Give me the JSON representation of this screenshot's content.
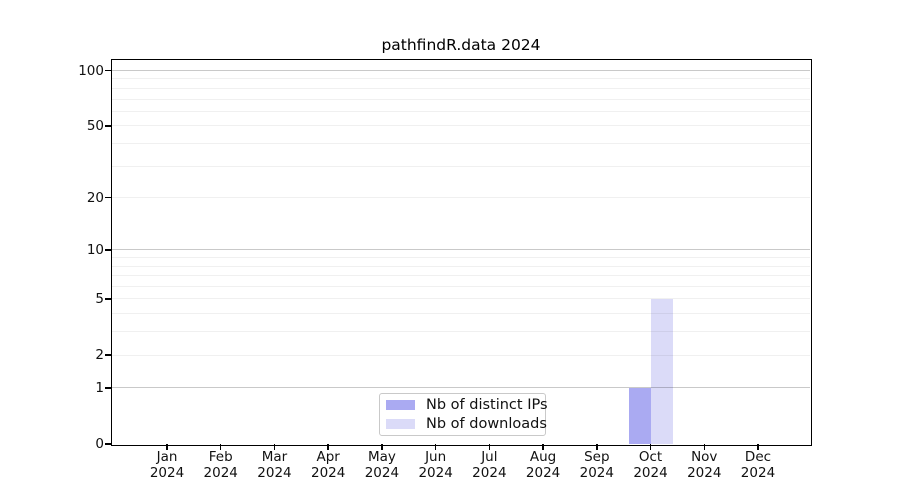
{
  "title": "pathfindR.data 2024",
  "chart_data": {
    "type": "bar",
    "title": "pathfindR.data 2024",
    "categories": [
      "Jan 2024",
      "Feb 2024",
      "Mar 2024",
      "Apr 2024",
      "May 2024",
      "Jun 2024",
      "Jul 2024",
      "Aug 2024",
      "Sep 2024",
      "Oct 2024",
      "Nov 2024",
      "Dec 2024"
    ],
    "months": [
      "Jan",
      "Feb",
      "Mar",
      "Apr",
      "May",
      "Jun",
      "Jul",
      "Aug",
      "Sep",
      "Oct",
      "Nov",
      "Dec"
    ],
    "year": "2024",
    "series": [
      {
        "name": "Nb of distinct IPs",
        "color": "#aaaaf2",
        "values": [
          0,
          0,
          0,
          0,
          0,
          0,
          0,
          0,
          0,
          1,
          0,
          0
        ]
      },
      {
        "name": "Nb of downloads",
        "color": "#dbdbf8",
        "values": [
          0,
          0,
          0,
          0,
          0,
          0,
          0,
          0,
          0,
          5,
          0,
          0
        ]
      }
    ],
    "xlabel": "",
    "ylabel": "",
    "yscale": "log1p",
    "ylim": [
      0,
      115
    ],
    "y_ticks": [
      100,
      50,
      20,
      10,
      5,
      2,
      1,
      0
    ],
    "grid": true,
    "gridlines": {
      "major": [
        1,
        10,
        100
      ],
      "minor": [
        2,
        3,
        4,
        5,
        6,
        7,
        8,
        9,
        20,
        30,
        40,
        50,
        60,
        70,
        80,
        90
      ]
    },
    "legend_position": "bottom-center-inside"
  },
  "legend": {
    "items": [
      {
        "label": "Nb of distinct IPs",
        "color": "#aaaaf2"
      },
      {
        "label": "Nb of downloads",
        "color": "#dbdbf8"
      }
    ]
  },
  "colors": {
    "background": "#ffffff",
    "frame": "#000000",
    "bar_distinct_ips": "#aaaaf2",
    "bar_downloads": "#dbdbf8",
    "gridline_major": "rgba(0,0,0,0.21)",
    "gridline_minor": "rgba(0,0,0,0.06)",
    "legend_border": "#c9c9c9"
  }
}
